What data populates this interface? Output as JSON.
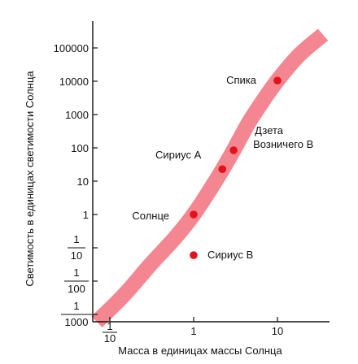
{
  "chart_data": {
    "type": "scatter",
    "title": "",
    "xlabel": "Масса в единицах массы Солнца",
    "ylabel": "Светимость в единицах светимости Солнца",
    "x_scale": "log",
    "y_scale": "log",
    "x_ticks": [
      {
        "value": 0.1,
        "num": "1",
        "den": "10"
      },
      {
        "value": 1,
        "label": "1"
      },
      {
        "value": 10,
        "label": "10"
      }
    ],
    "y_ticks": [
      {
        "value": 0.001,
        "num": "1",
        "den": "1000"
      },
      {
        "value": 0.01,
        "num": "1",
        "den": "100"
      },
      {
        "value": 0.1,
        "num": "1",
        "den": "10"
      },
      {
        "value": 1,
        "label": "1"
      },
      {
        "value": 10,
        "label": "10"
      },
      {
        "value": 100,
        "label": "100"
      },
      {
        "value": 1000,
        "label": "1000"
      },
      {
        "value": 10000,
        "label": "10000"
      },
      {
        "value": 100000,
        "label": "100000"
      }
    ],
    "points": [
      {
        "name": "Солнце",
        "x": 1,
        "y": 1
      },
      {
        "name": "Сириус А",
        "x": 2.2,
        "y": 23
      },
      {
        "name": "Дзета Возничего В",
        "x": 3,
        "y": 85
      },
      {
        "name": "Спика",
        "x": 10,
        "y": 10500
      },
      {
        "name": "Сириус В",
        "x": 1,
        "y": 0.06
      }
    ],
    "sequence_band": [
      {
        "x": 0.07,
        "y": 0.0006
      },
      {
        "x": 0.15,
        "y": 0.004
      },
      {
        "x": 0.3,
        "y": 0.03
      },
      {
        "x": 0.6,
        "y": 0.2
      },
      {
        "x": 1,
        "y": 1
      },
      {
        "x": 1.6,
        "y": 6
      },
      {
        "x": 2.2,
        "y": 22
      },
      {
        "x": 3,
        "y": 85
      },
      {
        "x": 4.5,
        "y": 550
      },
      {
        "x": 7,
        "y": 3000
      },
      {
        "x": 10,
        "y": 10500
      },
      {
        "x": 18,
        "y": 60000
      },
      {
        "x": 35,
        "y": 250000
      }
    ],
    "colors": {
      "point": "#e2121b",
      "band": "#f06b78"
    },
    "grid": false
  }
}
